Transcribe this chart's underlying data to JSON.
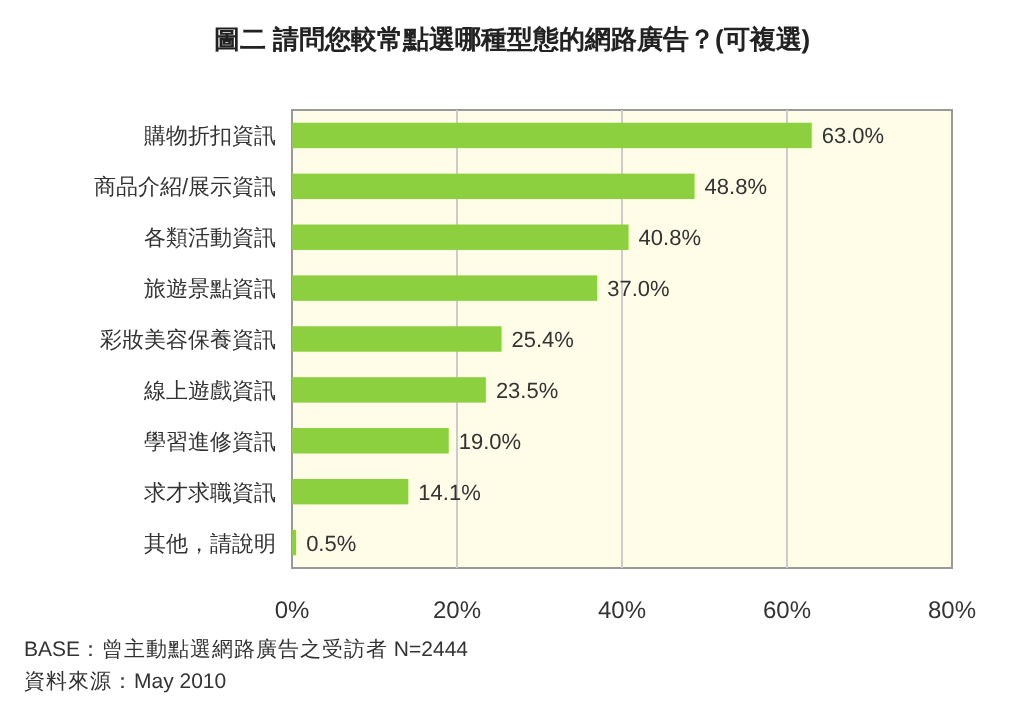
{
  "chart_data": {
    "type": "bar",
    "orientation": "horizontal",
    "title": "圖二 請問您較常點選哪種型態的網路廣告？(可複選)",
    "categories": [
      "購物折扣資訊",
      "商品介紹/展示資訊",
      "各類活動資訊",
      "旅遊景點資訊",
      "彩妝美容保養資訊",
      "線上遊戲資訊",
      "學習進修資訊",
      "求才求職資訊",
      "其他，請說明"
    ],
    "values": [
      63.0,
      48.8,
      40.8,
      37.0,
      25.4,
      23.5,
      19.0,
      14.1,
      0.5
    ],
    "value_labels": [
      "63.0%",
      "48.8%",
      "40.8%",
      "37.0%",
      "25.4%",
      "23.5%",
      "19.0%",
      "14.1%",
      "0.5%"
    ],
    "color": "#8ccf3f",
    "xlim": [
      0,
      80
    ],
    "xticks": [
      {
        "value": 0,
        "label": "0%"
      },
      {
        "value": 20,
        "label": "20%"
      },
      {
        "value": 40,
        "label": "40%"
      },
      {
        "value": 60,
        "label": "60%"
      },
      {
        "value": 80,
        "label": "80%"
      }
    ],
    "grid": "x",
    "annotations": [
      "BASE：曾主動點選網路廣告之受訪者 N=2444",
      "資料來源：May 2010"
    ]
  }
}
